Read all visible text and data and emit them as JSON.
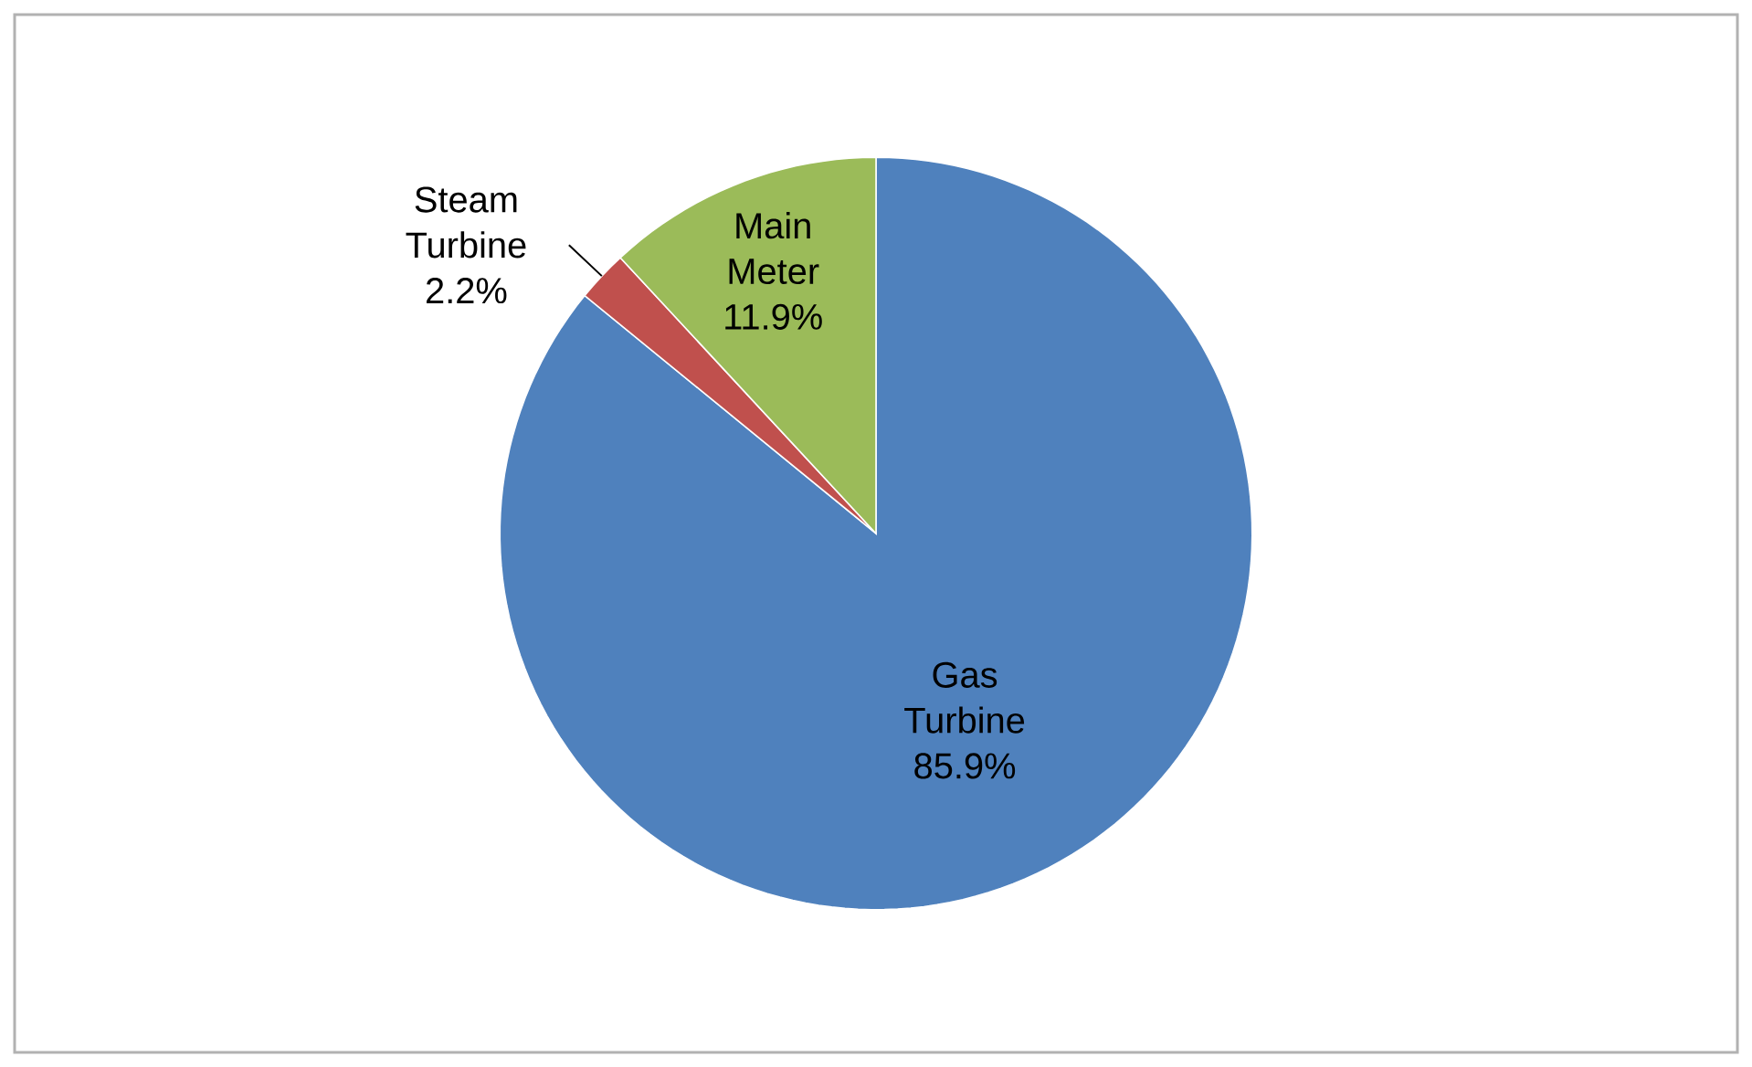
{
  "chart_data": {
    "type": "pie",
    "categories": [
      "Gas Turbine",
      "Steam Turbine",
      "Main Meter"
    ],
    "values": [
      85.9,
      2.2,
      11.9
    ],
    "value_labels": [
      "85.9%",
      "2.2%",
      "11.9%"
    ],
    "colors": [
      "#4f81bd",
      "#c0504d",
      "#9bbb59"
    ]
  }
}
